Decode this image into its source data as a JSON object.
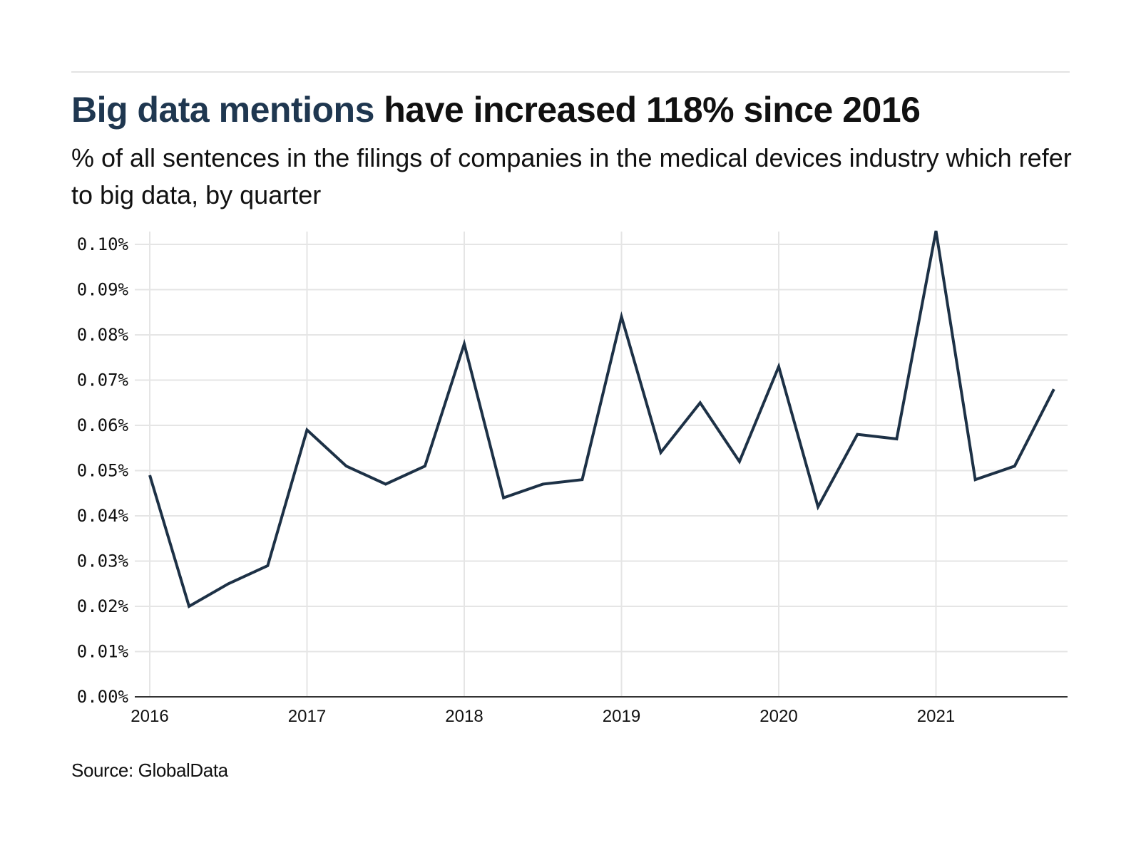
{
  "header": {
    "title_highlight": "Big data mentions",
    "title_rest": " have increased 118% since 2016",
    "subtitle": "% of all sentences in the filings of companies in the medical devices industry which refer to big data, by quarter"
  },
  "footer": {
    "source": "Source: GlobalData"
  },
  "colors": {
    "line": "#1d3146",
    "title_highlight": "#1f3750",
    "grid": "#e5e5e5",
    "axis": "#333333"
  },
  "chart_data": {
    "type": "line",
    "title": "Big data mentions have increased 118% since 2016",
    "subtitle": "% of all sentences in the filings of companies in the medical devices industry which refer to big data, by quarter",
    "xlabel": "",
    "ylabel": "",
    "x": [
      "2016Q1",
      "2016Q2",
      "2016Q3",
      "2016Q4",
      "2017Q1",
      "2017Q2",
      "2017Q3",
      "2017Q4",
      "2018Q1",
      "2018Q2",
      "2018Q3",
      "2018Q4",
      "2019Q1",
      "2019Q2",
      "2019Q3",
      "2019Q4",
      "2020Q1",
      "2020Q2",
      "2020Q3",
      "2020Q4",
      "2021Q1",
      "2021Q2",
      "2021Q3",
      "2021Q4"
    ],
    "x_numeric": [
      2016.0,
      2016.25,
      2016.5,
      2016.75,
      2017.0,
      2017.25,
      2017.5,
      2017.75,
      2018.0,
      2018.25,
      2018.5,
      2018.75,
      2019.0,
      2019.25,
      2019.5,
      2019.75,
      2020.0,
      2020.25,
      2020.5,
      2020.75,
      2021.0,
      2021.25,
      2021.5,
      2021.75
    ],
    "series": [
      {
        "name": "Big data mentions (% of sentences)",
        "values": [
          0.049,
          0.02,
          0.025,
          0.029,
          0.059,
          0.051,
          0.047,
          0.051,
          0.078,
          0.044,
          0.047,
          0.048,
          0.084,
          0.054,
          0.065,
          0.052,
          0.073,
          0.042,
          0.058,
          0.057,
          0.103,
          0.048,
          0.051,
          0.068
        ]
      }
    ],
    "xlim": [
      2015.9,
      2021.84
    ],
    "ylim": [
      0,
      0.103
    ],
    "x_ticks": [
      {
        "value": 2016,
        "label": "2016"
      },
      {
        "value": 2017,
        "label": "2017"
      },
      {
        "value": 2018,
        "label": "2018"
      },
      {
        "value": 2019,
        "label": "2019"
      },
      {
        "value": 2020,
        "label": "2020"
      },
      {
        "value": 2021,
        "label": "2021"
      }
    ],
    "y_ticks": [
      {
        "value": 0.0,
        "label": "0.00%"
      },
      {
        "value": 0.01,
        "label": "0.01%"
      },
      {
        "value": 0.02,
        "label": "0.02%"
      },
      {
        "value": 0.03,
        "label": "0.03%"
      },
      {
        "value": 0.04,
        "label": "0.04%"
      },
      {
        "value": 0.05,
        "label": "0.05%"
      },
      {
        "value": 0.06,
        "label": "0.06%"
      },
      {
        "value": 0.07,
        "label": "0.07%"
      },
      {
        "value": 0.08,
        "label": "0.08%"
      },
      {
        "value": 0.09,
        "label": "0.09%"
      },
      {
        "value": 0.1,
        "label": "0.10%"
      }
    ],
    "grid": true,
    "legend": "none",
    "source": "Source: GlobalData"
  }
}
